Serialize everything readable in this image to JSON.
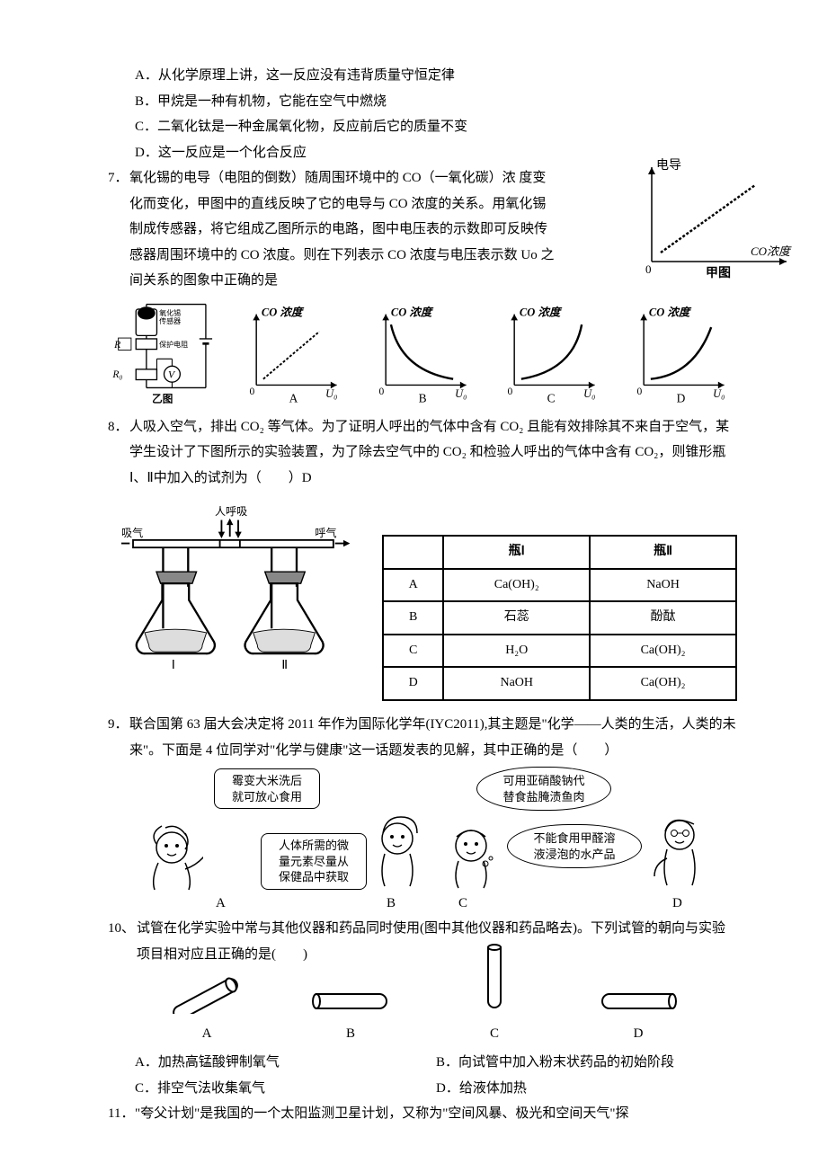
{
  "q6": {
    "optA": "A．从化学原理上讲，这一反应没有违背质量守恒定律",
    "optB": "B．甲烷是一种有机物，它能在空气中燃烧",
    "optC": "C．二氧化钛是一种金属氧化物，反应前后它的质量不变",
    "optD": "D．这一反应是一个化合反应"
  },
  "q7": {
    "num": "7．",
    "body1": "氧化锡的电导（电阻的倒数）随周围环境中的 CO（一氧化碳）浓 度变化而变化，甲图中的直线反映了它的电导与 CO 浓度的关系。用氧化锡制成传感器，将它组成乙图所示的电路，图中电压表的示数即可反映传感器周围环境中的 CO 浓度。则在下列表示 CO 浓度与电压表示数 Uo 之间关系的图象中正确的是",
    "chart_right": {
      "ylabel": "电导",
      "xlabel": "CO浓度",
      "caption": "甲图"
    },
    "circuit": {
      "sensor_label": "氧化锡\n传感器",
      "r_label": "R",
      "protect_label": "保护电阻",
      "r0_label": "R₀",
      "v_label": "V",
      "caption": "乙图"
    },
    "mini": [
      {
        "label": "A",
        "ylabel": "CO 浓度",
        "xlabel": "U₀",
        "curve": "lin-dash"
      },
      {
        "label": "B",
        "ylabel": "CO 浓度",
        "xlabel": "U₀",
        "curve": "dec-convex"
      },
      {
        "label": "C",
        "ylabel": "CO 浓度",
        "xlabel": "U₀",
        "curve": "dec-concave"
      },
      {
        "label": "D",
        "ylabel": "CO 浓度",
        "xlabel": "U₀",
        "curve": "inc-concave"
      }
    ]
  },
  "q8": {
    "num": "8．",
    "body": "人吸入空气，排出 CO₂ 等气体。为了证明人呼出的气体中含有 CO₂ 且能有效排除其不来自于空气，某学生设计了下图所示的实验装置，为了除去空气中的 CO₂ 和检验人呼出的气体中含有 CO₂，则锥形瓶Ⅰ、Ⅱ中加入的试剂为（　　）D",
    "flasks": {
      "inhale": "吸气",
      "breath": "人呼吸",
      "exhale": "呼气",
      "l1": "Ⅰ",
      "l2": "Ⅱ"
    },
    "table": {
      "headers": [
        "",
        "瓶Ⅰ",
        "瓶Ⅱ"
      ],
      "rows": [
        [
          "A",
          "Ca(OH)₂",
          "NaOH"
        ],
        [
          "B",
          "石蕊",
          "酚酞"
        ],
        [
          "C",
          "H₂O",
          "Ca(OH)₂"
        ],
        [
          "D",
          "NaOH",
          "Ca(OH)₂"
        ]
      ]
    }
  },
  "q9": {
    "num": "9．",
    "body": "联合国第 63 届大会决定将 2011 年作为国际化学年(IYC2011),其主题是\"化学——人类的生活，人类的未来\"。下面是 4 位同学对\"化学与健康\"这一话题发表的见解，其中正确的是（　　）",
    "bubbles": {
      "a": "霉变大米洗后\n就可放心食用",
      "b": "人体所需的微\n量元素尽量从\n保健品中获取",
      "c": "可用亚硝酸钠代\n替食盐腌渍鱼肉",
      "d": "不能食用甲醛溶\n液浸泡的水产品"
    },
    "labels": {
      "a": "A",
      "b": "B",
      "c": "C",
      "d": "D"
    }
  },
  "q10": {
    "num": "10、",
    "body": "试管在化学实验中常与其他仪器和药品同时使用(图中其他仪器和药品略去)。下列试管的朝向与实验项目相对应且正确的是(　　)",
    "labels": {
      "a": "A",
      "b": "B",
      "c": "C",
      "d": "D"
    },
    "optA": "A．加热高锰酸钾制氧气",
    "optB": "B．向试管中加入粉末状药品的初始阶段",
    "optC": "C．排空气法收集氧气",
    "optD": "D．给液体加热"
  },
  "q11": {
    "num": "11．",
    "body": "\"夸父计划\"是我国的一个太阳监测卫星计划，又称为\"空间风暴、极光和空间天气\"探"
  },
  "colors": {
    "line": "#000000",
    "bg": "#ffffff"
  }
}
